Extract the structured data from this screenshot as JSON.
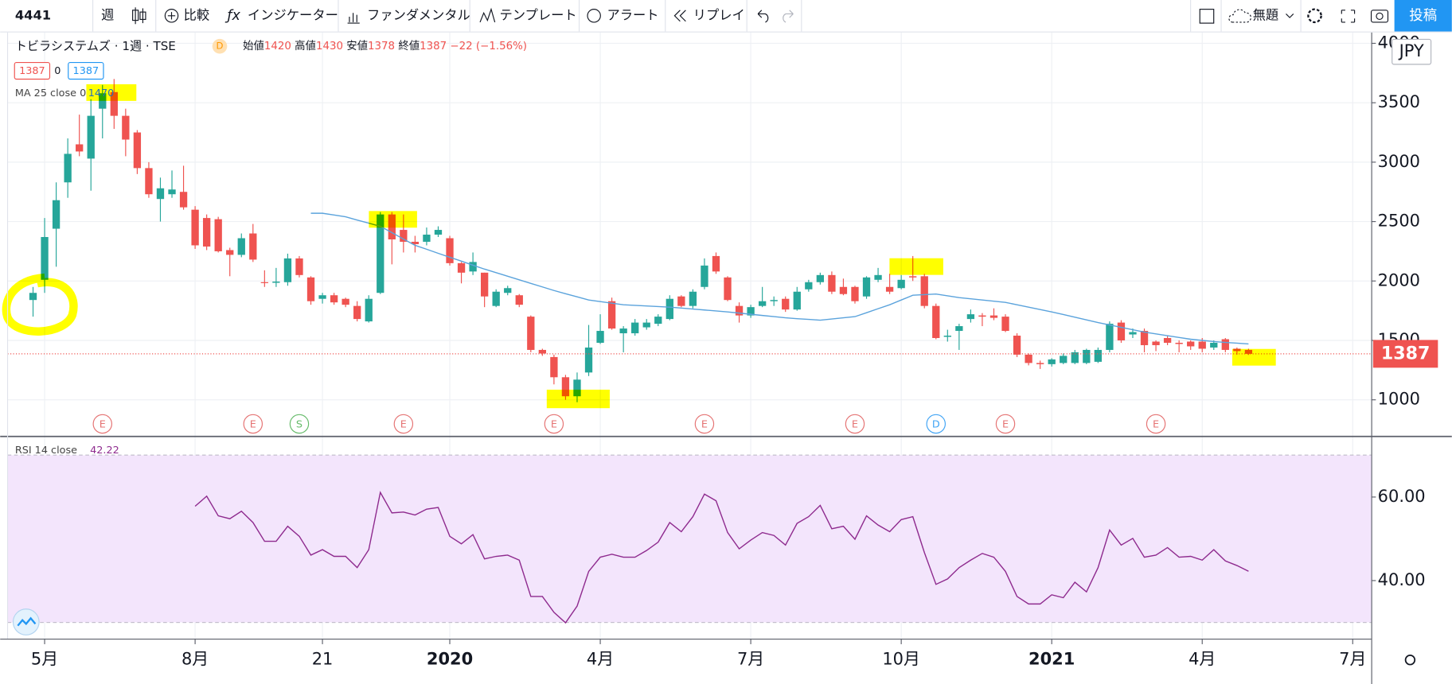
{
  "toolbar": {
    "symbol": "4441",
    "interval": "週",
    "items": [
      "比較",
      "インジケーター",
      "ファンダメンタル",
      "テンプレート",
      "アラート",
      "リプレイ"
    ],
    "layout": "無題",
    "publish": "投稿"
  },
  "legend": {
    "badge": "D",
    "labels": [
      "始値",
      "高値",
      "安値",
      "終値"
    ],
    "change": "−22 (−1.56%)",
    "spread": 0,
    "currency": "JPY"
  },
  "chart_data": [
    {
      "type": "candlestick",
      "title": "トビラシステムズ · 1週 · TSE",
      "up_color": "#26a69a",
      "down_color": "#ef5350",
      "open": [
        1840,
        2010,
        2440,
        2830,
        3150,
        3030,
        3450,
        3590,
        3390,
        3250,
        2950,
        2690,
        2730,
        2750,
        2600,
        2530,
        2520,
        2260,
        2220,
        2400,
        1990,
        1985,
        1990,
        2190,
        2030,
        1850,
        1880,
        1850,
        1790,
        1660,
        1900,
        2560,
        2430,
        2330,
        2330,
        2390,
        2360,
        2150,
        2080,
        2070,
        1790,
        1900,
        1880,
        1700,
        1420,
        1360,
        1190,
        1030,
        1230,
        1480,
        1830,
        1560,
        1560,
        1610,
        1640,
        1680,
        1870,
        1790,
        1950,
        2210,
        2030,
        1790,
        1710,
        1790,
        1830,
        1850,
        1760,
        1930,
        1990,
        2050,
        1950,
        1950,
        1870,
        2010,
        1950,
        1940,
        2040,
        2040,
        1790,
        1530,
        1580,
        1680,
        1710,
        1710,
        1700,
        1540,
        1380,
        1310,
        1300,
        1310,
        1310,
        1310,
        1320,
        1420,
        1650,
        1550,
        1580,
        1490,
        1520,
        1480,
        1490,
        1490,
        1440,
        1510,
        1430,
        1420
      ],
      "high": [
        1950,
        2530,
        2830,
        3200,
        3400,
        3530,
        3650,
        3700,
        3450,
        3270,
        3000,
        2870,
        2930,
        2970,
        2630,
        2560,
        2540,
        2280,
        2400,
        2480,
        2090,
        2110,
        2230,
        2210,
        2040,
        1900,
        1900,
        1860,
        1830,
        1880,
        2580,
        2580,
        2560,
        2380,
        2450,
        2460,
        2380,
        2160,
        2240,
        2070,
        1930,
        1960,
        1890,
        1710,
        1430,
        1380,
        1210,
        1230,
        1630,
        1720,
        1860,
        1620,
        1680,
        1680,
        1720,
        1880,
        1880,
        1930,
        2190,
        2240,
        2040,
        1820,
        1800,
        1950,
        1870,
        1870,
        1950,
        2010,
        2070,
        2080,
        2020,
        1960,
        2040,
        2110,
        2060,
        2050,
        2210,
        2060,
        1810,
        1590,
        1640,
        1760,
        1730,
        1770,
        1720,
        1560,
        1390,
        1330,
        1350,
        1390,
        1420,
        1430,
        1440,
        1660,
        1670,
        1600,
        1600,
        1500,
        1540,
        1500,
        1500,
        1520,
        1500,
        1520,
        1440,
        1430
      ],
      "low": [
        1700,
        1900,
        2120,
        2700,
        3050,
        2760,
        3200,
        3280,
        3050,
        2900,
        2700,
        2500,
        2700,
        2600,
        2270,
        2260,
        2240,
        2040,
        2200,
        2160,
        1950,
        1950,
        1960,
        2030,
        1800,
        1810,
        1800,
        1780,
        1660,
        1650,
        1890,
        2140,
        2240,
        2240,
        2300,
        2370,
        2130,
        1980,
        2050,
        1780,
        1780,
        1880,
        1780,
        1400,
        1370,
        1130,
        1000,
        980,
        1200,
        1470,
        1590,
        1400,
        1540,
        1590,
        1620,
        1670,
        1780,
        1770,
        1930,
        2060,
        1830,
        1650,
        1690,
        1780,
        1790,
        1740,
        1750,
        1910,
        1970,
        1890,
        1880,
        1810,
        1850,
        1990,
        1890,
        1930,
        2000,
        1770,
        1510,
        1490,
        1420,
        1650,
        1620,
        1670,
        1570,
        1360,
        1290,
        1260,
        1280,
        1300,
        1300,
        1300,
        1310,
        1400,
        1480,
        1520,
        1400,
        1410,
        1460,
        1400,
        1420,
        1400,
        1420,
        1400,
        1380,
        1378
      ],
      "close": [
        1900,
        2370,
        2680,
        3070,
        3090,
        3390,
        3580,
        3390,
        3190,
        2950,
        2730,
        2780,
        2770,
        2620,
        2300,
        2290,
        2250,
        2220,
        2360,
        2180,
        1985,
        1995,
        2190,
        2050,
        1830,
        1880,
        1820,
        1800,
        1680,
        1850,
        2560,
        2350,
        2330,
        2310,
        2390,
        2430,
        2150,
        2070,
        2160,
        1870,
        1910,
        1940,
        1800,
        1420,
        1390,
        1190,
        1030,
        1170,
        1440,
        1580,
        1600,
        1600,
        1650,
        1650,
        1700,
        1850,
        1790,
        1910,
        2130,
        2080,
        1840,
        1710,
        1780,
        1830,
        1840,
        1760,
        1910,
        1990,
        2050,
        1910,
        1890,
        1830,
        2030,
        2050,
        1910,
        2010,
        2030,
        1790,
        1520,
        1540,
        1620,
        1720,
        1700,
        1690,
        1580,
        1380,
        1310,
        1300,
        1340,
        1370,
        1400,
        1420,
        1420,
        1640,
        1500,
        1570,
        1460,
        1460,
        1480,
        1470,
        1450,
        1430,
        1480,
        1420,
        1410,
        1387
      ],
      "ma": {
        "name": "MA 25 close 0",
        "color": "#5ba3dc",
        "values": [
          null,
          null,
          null,
          null,
          null,
          null,
          null,
          null,
          null,
          null,
          null,
          null,
          null,
          null,
          null,
          null,
          null,
          null,
          null,
          null,
          null,
          null,
          null,
          null,
          2570,
          2570,
          2555,
          2540,
          2513,
          2487,
          2460,
          2407,
          2353,
          2300,
          2267,
          2233,
          2200,
          2167,
          2133,
          2100,
          2070,
          2040,
          2010,
          1980,
          1950,
          1920,
          1893,
          1867,
          1840,
          1827,
          1813,
          1800,
          1795,
          1790,
          1785,
          1780,
          1772,
          1764,
          1756,
          1748,
          1740,
          1730,
          1720,
          1710,
          1700,
          1690,
          1683,
          1677,
          1670,
          1680,
          1690,
          1700,
          1733,
          1767,
          1800,
          1840,
          1880,
          1885,
          1890,
          1875,
          1860,
          1850,
          1840,
          1830,
          1820,
          1800,
          1780,
          1760,
          1740,
          1718,
          1695,
          1673,
          1650,
          1630,
          1610,
          1590,
          1570,
          1555,
          1540,
          1525,
          1510,
          1500,
          1490,
          1483,
          1477,
          1470
        ]
      },
      "events": [
        {
          "label": "E",
          "x": 6,
          "color": "#e57373"
        },
        {
          "label": "E",
          "x": 19,
          "color": "#e57373"
        },
        {
          "label": "S",
          "x": 23,
          "color": "#66bb6a"
        },
        {
          "label": "E",
          "x": 32,
          "color": "#e57373"
        },
        {
          "label": "E",
          "x": 45,
          "color": "#e57373"
        },
        {
          "label": "E",
          "x": 58,
          "color": "#e57373"
        },
        {
          "label": "E",
          "x": 71,
          "color": "#e57373"
        },
        {
          "label": "D",
          "x": 78,
          "color": "#42a5f5"
        },
        {
          "label": "E",
          "x": 84,
          "color": "#e57373"
        },
        {
          "label": "E",
          "x": 97,
          "color": "#e57373"
        }
      ],
      "xlim": [
        -2.2,
        115.6
      ],
      "xticks": [
        {
          "value": 1,
          "label": "5月"
        },
        {
          "value": 14,
          "label": "8月"
        },
        {
          "value": 25,
          "label": "21"
        },
        {
          "value": 36,
          "label": "2020",
          "bold": true
        },
        {
          "value": 49,
          "label": "4月"
        },
        {
          "value": 62,
          "label": "7月"
        },
        {
          "value": 75,
          "label": "10月"
        },
        {
          "value": 88,
          "label": "2021",
          "bold": true
        },
        {
          "value": 101,
          "label": "4月"
        },
        {
          "value": 114,
          "label": "7月"
        }
      ],
      "ylim": [
        696,
        4092
      ],
      "yticks": [
        1000,
        1500,
        2000,
        2500,
        3000,
        3500,
        4000
      ],
      "grid": true
    },
    {
      "type": "line",
      "series": [
        {
          "name": "RSI 14 close",
          "color": "#8e2a8e",
          "values": [
            null,
            null,
            null,
            null,
            null,
            null,
            null,
            null,
            null,
            null,
            null,
            null,
            null,
            null,
            57.8,
            60.2,
            55.5,
            54.8,
            56.6,
            53.9,
            49.4,
            49.4,
            53.0,
            50.6,
            46.1,
            47.4,
            45.8,
            45.8,
            43.1,
            47.4,
            61.1,
            56.2,
            56.4,
            55.7,
            57.1,
            57.5,
            50.6,
            48.8,
            51.0,
            45.2,
            45.8,
            46.1,
            44.9,
            36.2,
            36.2,
            32.4,
            29.9,
            33.9,
            42.2,
            45.6,
            46.3,
            45.6,
            45.6,
            47.2,
            49.2,
            53.9,
            51.7,
            55.3,
            60.7,
            59.1,
            51.5,
            47.6,
            49.7,
            51.5,
            50.8,
            48.5,
            53.7,
            55.3,
            58.0,
            52.4,
            53.0,
            49.9,
            55.5,
            53.3,
            51.7,
            54.6,
            55.3,
            46.7,
            39.1,
            40.4,
            43.1,
            44.9,
            46.5,
            45.6,
            42.2,
            36.2,
            34.4,
            34.4,
            36.6,
            35.9,
            39.6,
            37.3,
            43.1,
            52.1,
            48.5,
            50.1,
            45.6,
            46.1,
            47.9,
            45.6,
            45.8,
            44.9,
            47.4,
            44.7,
            43.6,
            42.22
          ]
        }
      ],
      "band": [
        30,
        70
      ],
      "band_color": "#f3e5fc",
      "ylim": [
        26.1,
        74.4
      ],
      "yticks": [
        {
          "value": 60,
          "label": "60.00"
        },
        {
          "value": 40,
          "label": "40.00"
        }
      ],
      "grid": true
    }
  ]
}
